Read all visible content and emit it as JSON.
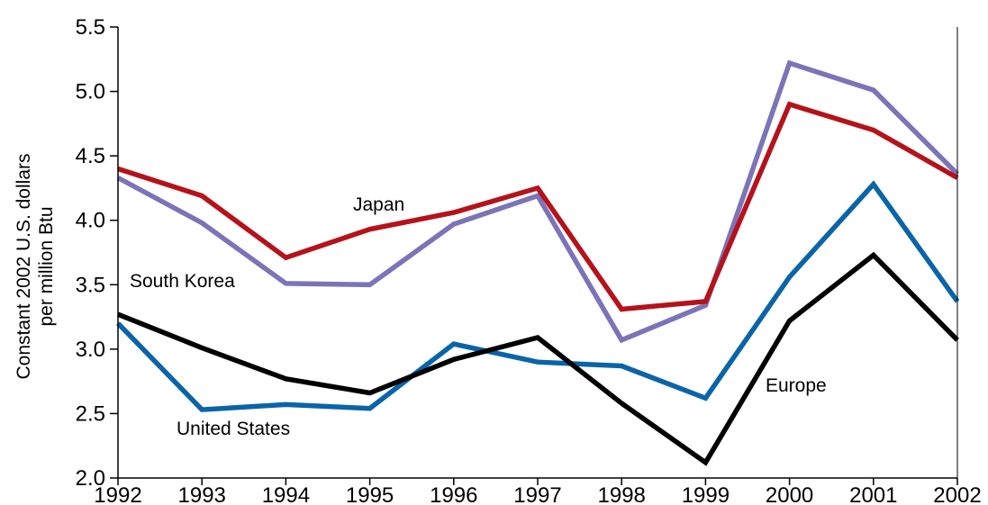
{
  "chart_data": {
    "type": "line",
    "title": "",
    "xlabel": "",
    "ylabel": [
      "Constant 2002 U.S. dollars",
      "per million Btu"
    ],
    "x": [
      "1992",
      "1993",
      "1994",
      "1995",
      "1996",
      "1997",
      "1998",
      "1999",
      "2000",
      "2001",
      "2002"
    ],
    "ylim": [
      2.0,
      5.5
    ],
    "yticks": [
      "2.0",
      "2.5",
      "3.0",
      "3.5",
      "4.0",
      "4.5",
      "5.0",
      "5.5"
    ],
    "ytick_values": [
      2.0,
      2.5,
      3.0,
      3.5,
      4.0,
      4.5,
      5.0,
      5.5
    ],
    "grid": false,
    "legend": "inline labels",
    "series": [
      {
        "name": "Japan",
        "color": "#b5121b",
        "values": [
          4.4,
          4.19,
          3.71,
          3.93,
          4.06,
          4.25,
          3.31,
          3.37,
          4.9,
          4.7,
          4.33
        ]
      },
      {
        "name": "South Korea",
        "color": "#7b74b8",
        "values": [
          4.33,
          3.98,
          3.51,
          3.5,
          3.97,
          4.19,
          3.07,
          3.34,
          5.22,
          5.01,
          4.36
        ]
      },
      {
        "name": "United States",
        "color": "#0a64a8",
        "values": [
          3.2,
          2.53,
          2.57,
          2.54,
          3.04,
          2.9,
          2.87,
          2.62,
          3.56,
          4.28,
          3.37
        ]
      },
      {
        "name": "Europe",
        "color": "#000000",
        "values": [
          3.27,
          3.01,
          2.77,
          2.66,
          2.92,
          3.09,
          2.58,
          2.12,
          3.22,
          3.73,
          3.07
        ]
      }
    ]
  }
}
